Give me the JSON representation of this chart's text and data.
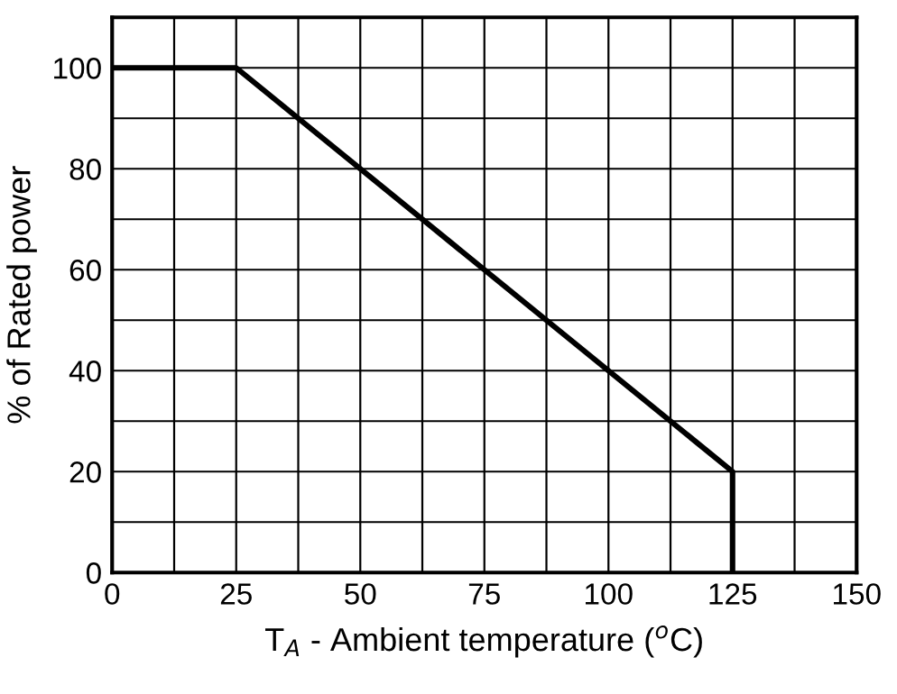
{
  "chart_data": {
    "type": "line",
    "xlabel": "T$_{A}$ - Ambient temperature ($^{o}$C)",
    "ylabel": "% of Rated power",
    "series": [
      {
        "color": "#000000",
        "x": [
          0,
          25,
          125,
          125
        ],
        "values": [
          100,
          100,
          20,
          0
        ]
      }
    ],
    "xlim": [
      0,
      150
    ],
    "ylim": [
      0,
      110
    ],
    "xticks": [
      0,
      {
        "value": 12.5,
        "label": null
      },
      25,
      {
        "value": 37.5,
        "label": null
      },
      50,
      {
        "value": 62.5,
        "label": null
      },
      75,
      {
        "value": 87.5,
        "label": null
      },
      100,
      {
        "value": 112.5,
        "label": null
      },
      125,
      {
        "value": 137.5,
        "label": null
      },
      150
    ],
    "yticks": [
      0,
      {
        "value": 10,
        "label": null
      },
      20,
      {
        "value": 30,
        "label": null
      },
      40,
      {
        "value": 50,
        "label": null
      },
      60,
      {
        "value": 70,
        "label": null
      },
      80,
      {
        "value": 90,
        "label": null
      },
      100,
      {
        "value": 110,
        "label": null
      }
    ],
    "grid": true,
    "marker": "none",
    "line_style": "solid",
    "legend": false
  }
}
